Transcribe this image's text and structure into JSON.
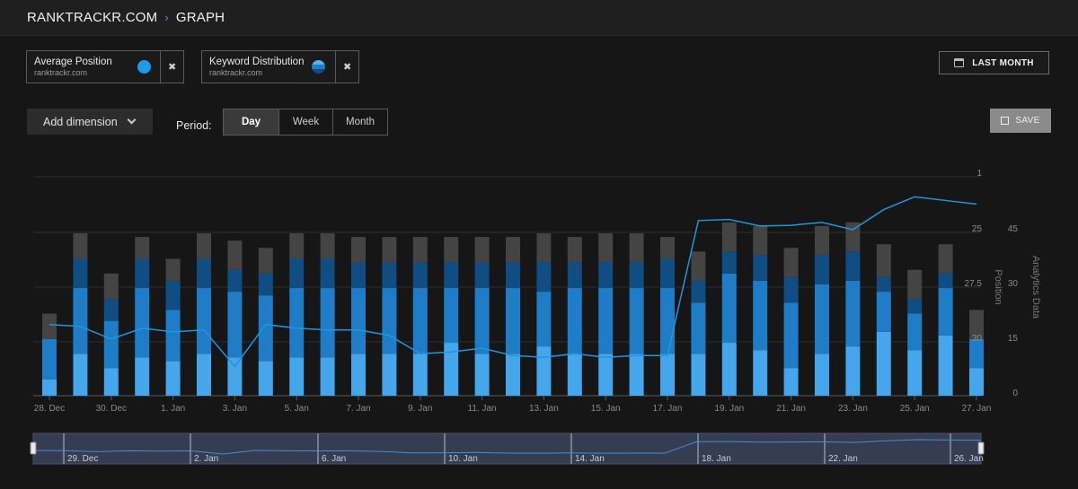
{
  "breadcrumb": {
    "site": "RANKTRACKR.COM",
    "separator": "›",
    "page": "GRAPH"
  },
  "metrics": [
    {
      "title": "Average Position",
      "subtitle": "ranktrackr.com",
      "color": "#1e9be6"
    },
    {
      "title": "Keyword Distribution",
      "subtitle": "ranktrackr.com",
      "color": "#2a7fc9"
    }
  ],
  "close_glyph": "✖",
  "date_range": {
    "label": "LAST MONTH"
  },
  "add_dimension": {
    "label": "Add dimension"
  },
  "period": {
    "label": "Period:",
    "options": [
      "Day",
      "Week",
      "Month"
    ],
    "selected": "Day"
  },
  "save": {
    "label": "SAVE"
  },
  "colors": {
    "bar_top": "#444444",
    "bar_dark": "#0f4d82",
    "bar_mid": "#1f7dc7",
    "bar_light": "#45a6ec",
    "line": "#1f96de",
    "navigator_bg": "#363d52"
  },
  "chart_data": {
    "type": "bar",
    "stacked": true,
    "grid": true,
    "categories": [
      "28 Dec",
      "29 Dec",
      "30 Dec",
      "31 Dec",
      "1 Jan",
      "2 Jan",
      "3 Jan",
      "4 Jan",
      "5 Jan",
      "6 Jan",
      "7 Jan",
      "8 Jan",
      "9 Jan",
      "10 Jan",
      "11 Jan",
      "12 Jan",
      "13 Jan",
      "14 Jan",
      "15 Jan",
      "16 Jan",
      "17 Jan",
      "18 Jan",
      "19 Jan",
      "20 Jan",
      "21 Jan",
      "22 Jan",
      "23 Jan",
      "24 Jan",
      "25 Jan",
      "26 Jan",
      "27 Jan"
    ],
    "x_tick_labels": [
      "28. Dec",
      "30. Dec",
      "1. Jan",
      "3. Jan",
      "5. Jan",
      "7. Jan",
      "9. Jan",
      "11. Jan",
      "13. Jan",
      "15. Jan",
      "17. Jan",
      "19. Jan",
      "21. Jan",
      "23. Jan",
      "25. Jan",
      "27. Jan"
    ],
    "analytics_axis": {
      "label": "Analytics Data",
      "ticks": [
        "0",
        "15",
        "30",
        "45"
      ],
      "range": [
        0,
        60
      ]
    },
    "position_axis": {
      "label": "Position",
      "ticks": [
        "1",
        "25",
        "27.5",
        "30"
      ]
    },
    "series": [
      {
        "name": "",
        "kind": "bar",
        "color": "#45a6ec",
        "values": [
          4.5,
          11.5,
          7.5,
          10.5,
          9.5,
          11.5,
          10.5,
          9.5,
          10.5,
          10.5,
          11.5,
          11.5,
          11.5,
          14.5,
          11.5,
          11.5,
          13.5,
          11.5,
          11.5,
          11.5,
          11.5,
          11.5,
          14.5,
          12.5,
          7.5,
          11.5,
          13.5,
          17.5,
          12.5,
          16.5,
          7.5
        ]
      },
      {
        "name": "",
        "kind": "bar",
        "color": "#1f7dc7",
        "values": [
          11,
          18,
          13,
          19,
          14,
          18,
          18,
          18,
          19,
          19,
          18,
          18,
          18,
          15,
          18,
          18,
          15,
          18,
          18,
          18,
          18,
          14,
          19,
          19,
          18,
          19,
          18,
          11,
          10,
          13,
          8
        ]
      },
      {
        "name": "",
        "kind": "bar",
        "color": "#0f4d82",
        "values": [
          0,
          8,
          6,
          8,
          8,
          8,
          6,
          6,
          8,
          8,
          7,
          7,
          7,
          7,
          7,
          7,
          8,
          7,
          7,
          7,
          8,
          6,
          6,
          7,
          7,
          8,
          8,
          4,
          4,
          4,
          0
        ]
      },
      {
        "name": "",
        "kind": "bar",
        "color": "#444444",
        "values": [
          7,
          7,
          7,
          6,
          6,
          7,
          8,
          7,
          7,
          7,
          7,
          7,
          7,
          7,
          7,
          7,
          8,
          7,
          8,
          8,
          6,
          8,
          8,
          8,
          8,
          8,
          8,
          9,
          8,
          8,
          8
        ]
      },
      {
        "name": "",
        "kind": "line",
        "axis": "position",
        "color": "#1f96de",
        "values": [
          19.5,
          19,
          15.5,
          18.5,
          17.5,
          18,
          8,
          19.5,
          18.5,
          18,
          18,
          16.5,
          11.5,
          12,
          13,
          11,
          10.5,
          11.5,
          10.5,
          11,
          11,
          48,
          48.3,
          46.5,
          46.7,
          47.5,
          45.5,
          51,
          54.5,
          53.5,
          52.5
        ]
      }
    ],
    "navigator": {
      "tick_labels": [
        "29. Dec",
        "2. Jan",
        "6. Jan",
        "10. Jan",
        "14. Jan",
        "18. Jan",
        "22. Jan",
        "26. Jan"
      ]
    }
  }
}
